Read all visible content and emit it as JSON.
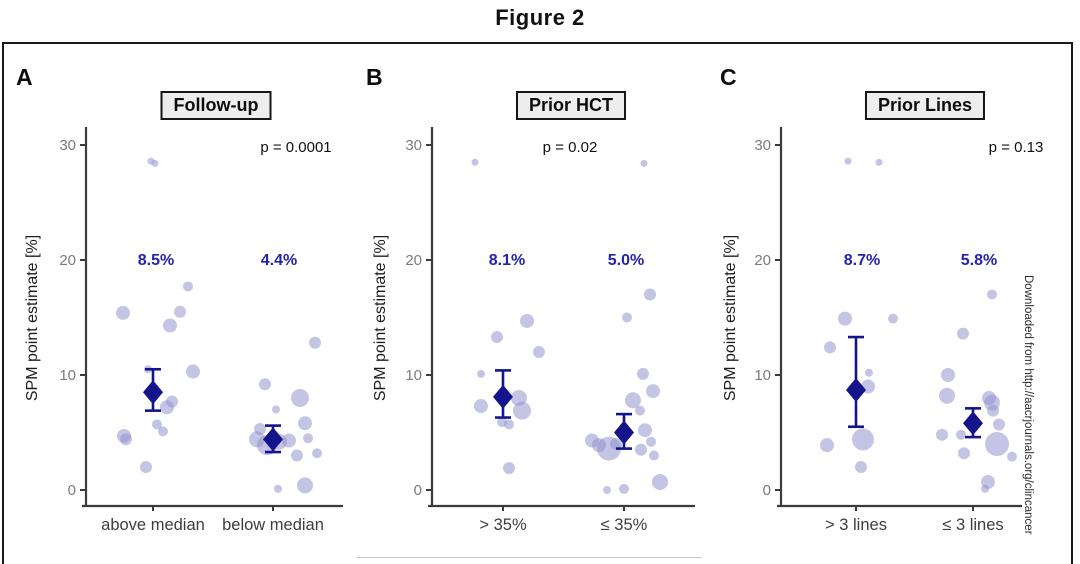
{
  "figure": {
    "title": "Figure 2"
  },
  "watermark": {
    "text": "Downloaded from http://aacrjournals.org/clincancer"
  },
  "colors": {
    "mean_diamond_navy": "#14148c",
    "data_dot_lavender": "#9494d0",
    "mean_label_blue": "#2323ad",
    "axis_gray": "#3a3a3a",
    "header_box_bg": "#ededed"
  },
  "axis": {
    "ylabel": "SPM point estimate [%]",
    "yticks": [
      0,
      10,
      20,
      30
    ],
    "ylim": [
      0,
      31
    ],
    "grid": "off"
  },
  "chart_data": [
    {
      "type": "scatter",
      "panel": "A",
      "title": "Follow-up",
      "p_label": "p = 0.0001",
      "ylabel": "SPM point estimate [%]",
      "yticks": [
        0,
        10,
        20,
        30
      ],
      "categories": [
        "above median",
        "below median"
      ],
      "groups": [
        {
          "category": "above median",
          "mean_label": "8.5%",
          "mean": 8.5,
          "ci": [
            6.9,
            10.5
          ],
          "points": [
            {
              "v": 28.6,
              "dx": -2,
              "r": 3.5
            },
            {
              "v": 28.4,
              "dx": 2,
              "r": 3.5
            },
            {
              "v": 15.4,
              "dx": -30,
              "r": 7
            },
            {
              "v": 17.7,
              "dx": 35,
              "r": 5
            },
            {
              "v": 15.5,
              "dx": 27,
              "r": 6
            },
            {
              "v": 14.3,
              "dx": 17,
              "r": 7
            },
            {
              "v": 10.5,
              "dx": -5,
              "r": 4
            },
            {
              "v": 10.3,
              "dx": 40,
              "r": 7
            },
            {
              "v": 7.7,
              "dx": 19,
              "r": 6
            },
            {
              "v": 7.2,
              "dx": 14,
              "r": 7
            },
            {
              "v": 5.7,
              "dx": 4,
              "r": 5
            },
            {
              "v": 5.1,
              "dx": 10,
              "r": 5
            },
            {
              "v": 4.7,
              "dx": -29,
              "r": 7
            },
            {
              "v": 4.4,
              "dx": -27,
              "r": 6
            },
            {
              "v": 2.0,
              "dx": -7,
              "r": 6
            }
          ]
        },
        {
          "category": "below median",
          "mean_label": "4.4%",
          "mean": 4.4,
          "ci": [
            3.3,
            5.6
          ],
          "points": [
            {
              "v": 12.8,
              "dx": 42,
              "r": 6
            },
            {
              "v": 9.2,
              "dx": -8,
              "r": 6
            },
            {
              "v": 8.0,
              "dx": 27,
              "r": 9
            },
            {
              "v": 7.0,
              "dx": 3,
              "r": 4
            },
            {
              "v": 5.8,
              "dx": 32,
              "r": 7
            },
            {
              "v": 5.3,
              "dx": -13,
              "r": 6
            },
            {
              "v": 4.5,
              "dx": 35,
              "r": 5
            },
            {
              "v": 4.4,
              "dx": -16,
              "r": 8
            },
            {
              "v": 3.9,
              "dx": -6,
              "r": 10
            },
            {
              "v": 4.2,
              "dx": 6,
              "r": 8
            },
            {
              "v": 4.3,
              "dx": 16,
              "r": 7
            },
            {
              "v": 3.0,
              "dx": 24,
              "r": 6
            },
            {
              "v": 3.2,
              "dx": 44,
              "r": 5
            },
            {
              "v": 0.4,
              "dx": 32,
              "r": 8
            },
            {
              "v": 0.1,
              "dx": 5,
              "r": 4
            }
          ]
        }
      ]
    },
    {
      "type": "scatter",
      "panel": "B",
      "title": "Prior HCT",
      "p_label": "p = 0.02",
      "ylabel": "SPM point estimate [%]",
      "yticks": [
        0,
        10,
        20,
        30
      ],
      "categories": [
        "> 35%",
        "≤ 35%"
      ],
      "groups": [
        {
          "category": "> 35%",
          "mean_label": "8.1%",
          "mean": 8.1,
          "ci": [
            6.3,
            10.4
          ],
          "points": [
            {
              "v": 28.5,
              "dx": -28,
              "r": 3.5
            },
            {
              "v": 14.7,
              "dx": 24,
              "r": 7
            },
            {
              "v": 13.3,
              "dx": -6,
              "r": 6
            },
            {
              "v": 12.0,
              "dx": 36,
              "r": 6
            },
            {
              "v": 10.1,
              "dx": -22,
              "r": 4
            },
            {
              "v": 8.0,
              "dx": 16,
              "r": 8
            },
            {
              "v": 7.3,
              "dx": -22,
              "r": 7
            },
            {
              "v": 6.9,
              "dx": 19,
              "r": 9
            },
            {
              "v": 5.9,
              "dx": -1,
              "r": 5
            },
            {
              "v": 5.7,
              "dx": 6,
              "r": 5
            },
            {
              "v": 1.9,
              "dx": 6,
              "r": 6
            }
          ]
        },
        {
          "category": "≤ 35%",
          "mean_label": "5.0%",
          "mean": 5.0,
          "ci": [
            3.6,
            6.6
          ],
          "points": [
            {
              "v": 28.4,
              "dx": 20,
              "r": 3.5
            },
            {
              "v": 17.0,
              "dx": 26,
              "r": 6
            },
            {
              "v": 15.0,
              "dx": 3,
              "r": 5
            },
            {
              "v": 10.1,
              "dx": 19,
              "r": 6
            },
            {
              "v": 8.6,
              "dx": 29,
              "r": 7
            },
            {
              "v": 7.8,
              "dx": 9,
              "r": 8
            },
            {
              "v": 6.9,
              "dx": 16,
              "r": 5
            },
            {
              "v": 5.2,
              "dx": 21,
              "r": 7
            },
            {
              "v": 4.2,
              "dx": 27,
              "r": 5
            },
            {
              "v": 3.5,
              "dx": 17,
              "r": 6
            },
            {
              "v": 3.0,
              "dx": 30,
              "r": 5
            },
            {
              "v": 4.3,
              "dx": -32,
              "r": 7
            },
            {
              "v": 3.9,
              "dx": -25,
              "r": 7
            },
            {
              "v": 3.6,
              "dx": -15,
              "r": 12
            },
            {
              "v": 4.0,
              "dx": -8,
              "r": 6
            },
            {
              "v": 0.7,
              "dx": 36,
              "r": 8
            },
            {
              "v": 0.0,
              "dx": -17,
              "r": 4
            },
            {
              "v": 0.1,
              "dx": 0,
              "r": 5
            }
          ]
        }
      ]
    },
    {
      "type": "scatter",
      "panel": "C",
      "title": "Prior Lines",
      "p_label": "p = 0.13",
      "ylabel": "SPM point estimate [%]",
      "yticks": [
        0,
        10,
        20,
        30
      ],
      "categories": [
        "> 3 lines",
        "≤ 3 lines"
      ],
      "groups": [
        {
          "category": "> 3 lines",
          "mean_label": "8.7%",
          "mean": 8.7,
          "ci": [
            5.5,
            13.3
          ],
          "points": [
            {
              "v": 28.6,
              "dx": -8,
              "r": 3.5
            },
            {
              "v": 28.5,
              "dx": 23,
              "r": 3.5
            },
            {
              "v": 14.9,
              "dx": -11,
              "r": 7
            },
            {
              "v": 14.9,
              "dx": 37,
              "r": 5
            },
            {
              "v": 12.4,
              "dx": -26,
              "r": 6
            },
            {
              "v": 10.2,
              "dx": 13,
              "r": 4
            },
            {
              "v": 9.0,
              "dx": 12,
              "r": 7
            },
            {
              "v": 4.4,
              "dx": 7,
              "r": 11
            },
            {
              "v": 3.9,
              "dx": -29,
              "r": 7
            },
            {
              "v": 2.0,
              "dx": 5,
              "r": 6
            }
          ]
        },
        {
          "category": "≤ 3 lines",
          "mean_label": "5.8%",
          "mean": 5.8,
          "ci": [
            4.6,
            7.1
          ],
          "points": [
            {
              "v": 17.0,
              "dx": 19,
              "r": 5
            },
            {
              "v": 13.6,
              "dx": -10,
              "r": 6
            },
            {
              "v": 10.0,
              "dx": -25,
              "r": 7
            },
            {
              "v": 8.2,
              "dx": -26,
              "r": 8
            },
            {
              "v": 8.0,
              "dx": 16,
              "r": 7
            },
            {
              "v": 7.6,
              "dx": 19,
              "r": 8
            },
            {
              "v": 6.9,
              "dx": 20,
              "r": 6
            },
            {
              "v": 5.7,
              "dx": 26,
              "r": 6
            },
            {
              "v": 4.8,
              "dx": -31,
              "r": 6
            },
            {
              "v": 4.8,
              "dx": -12,
              "r": 5
            },
            {
              "v": 4.0,
              "dx": 24,
              "r": 12
            },
            {
              "v": 3.2,
              "dx": -9,
              "r": 6
            },
            {
              "v": 2.9,
              "dx": 39,
              "r": 5
            },
            {
              "v": 0.7,
              "dx": 15,
              "r": 7
            },
            {
              "v": 0.1,
              "dx": 12,
              "r": 4
            }
          ]
        }
      ]
    }
  ]
}
